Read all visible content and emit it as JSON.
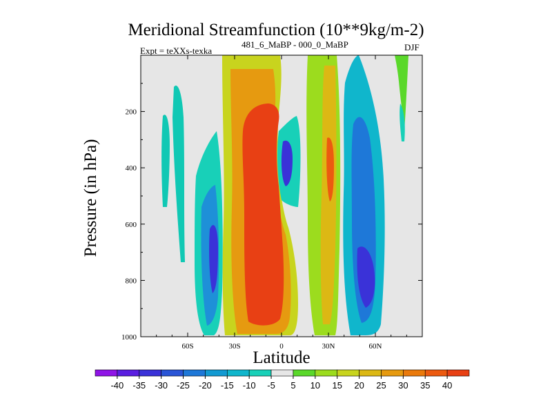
{
  "chart_data": {
    "type": "contour",
    "title": "Meridional Streamfunction (10**9kg/m-2)",
    "experiment": "Expt = teXXs-texka",
    "subtitle": "481_6_MaBP - 000_0_MaBP",
    "season": "DJF",
    "xlabel": "Latitude",
    "ylabel": "Pressure (in hPa)",
    "xlim": [
      -90,
      90
    ],
    "ylim": [
      1000,
      0
    ],
    "x_ticks": [
      -60,
      -30,
      0,
      30,
      60
    ],
    "x_tick_labels": [
      "60S",
      "30S",
      "0",
      "30N",
      "60N"
    ],
    "y_ticks": [
      200,
      400,
      600,
      800,
      1000
    ],
    "y_tick_labels": [
      "200",
      "400",
      "600",
      "800",
      "1000"
    ],
    "colorbar": {
      "labels": [
        "-40",
        "-35",
        "-30",
        "-25",
        "-20",
        "-15",
        "-10",
        "-5",
        "5",
        "10",
        "15",
        "20",
        "25",
        "30",
        "35",
        "40"
      ],
      "colors": [
        "#8f14e6",
        "#5a1ee0",
        "#3a32d8",
        "#2a55d6",
        "#1e78d8",
        "#129ad2",
        "#10b6cc",
        "#18d0b8",
        "#e6e6e6",
        "#5ad82a",
        "#9cdc1e",
        "#c8d41e",
        "#dcb814",
        "#e69a10",
        "#ea7a0c",
        "#ec5a10",
        "#e84014"
      ]
    },
    "regions": [
      {
        "name": "tropical-positive-cell",
        "lat": [
          -25,
          -2
        ],
        "p": [
          110,
          970
        ],
        "value": 40
      },
      {
        "name": "tropical-positive-halo",
        "lat": [
          -32,
          5
        ],
        "p": [
          20,
          990
        ],
        "value": 20
      },
      {
        "name": "equatorial-negative-core",
        "lat": [
          0,
          8
        ],
        "p": [
          290,
          460
        ],
        "value": -30
      },
      {
        "name": "southern-negative-cell",
        "lat": [
          -48,
          -36
        ],
        "p": [
          540,
          840
        ],
        "value": -30
      },
      {
        "name": "southern-negative-band",
        "lat": [
          -52,
          -32
        ],
        "p": [
          250,
          990
        ],
        "value": -10
      },
      {
        "name": "northern-negative-cell",
        "lat": [
          40,
          56
        ],
        "p": [
          660,
          940
        ],
        "value": -35
      },
      {
        "name": "northern-negative-band",
        "lat": [
          36,
          62
        ],
        "p": [
          80,
          990
        ],
        "value": -15
      },
      {
        "name": "northern-subtropical-positive",
        "lat": [
          22,
          32
        ],
        "p": [
          0,
          990
        ],
        "value": 15
      },
      {
        "name": "subtropical-extrema",
        "lat": [
          28,
          32
        ],
        "p": [
          240,
          510
        ],
        "value": 30
      },
      {
        "name": "polar-positive",
        "lat": [
          72,
          80
        ],
        "p": [
          0,
          300
        ],
        "value": 10
      },
      {
        "name": "southern-polar-negative",
        "lat": [
          -67,
          -60
        ],
        "p": [
          100,
          640
        ],
        "value": -10
      }
    ]
  }
}
